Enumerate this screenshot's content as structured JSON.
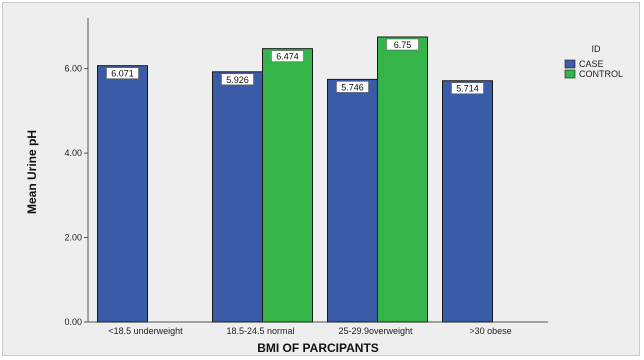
{
  "chart_data": {
    "type": "bar",
    "xlabel": "BMI OF PARCIPANTS",
    "ylabel": "Mean Urine pH",
    "ylim": [
      0,
      7.2
    ],
    "yticks": [
      "0.00",
      "2.00",
      "4.00",
      "6.00"
    ],
    "categories": [
      "<18.5 underweight",
      "18.5-24.5 normal",
      "25-29.9overweight",
      ">30 obese"
    ],
    "series": [
      {
        "name": "CASE",
        "color": "#3a5ca8",
        "values": [
          6.071,
          5.926,
          5.746,
          5.714
        ],
        "labels": [
          "6.071",
          "5.926",
          "5.746",
          "5.714"
        ]
      },
      {
        "name": "CONTROL",
        "color": "#35b44a",
        "values": [
          null,
          6.474,
          6.75,
          null
        ],
        "labels": [
          "",
          "6.474",
          "6.75",
          ""
        ]
      }
    ],
    "legend": {
      "title": "ID",
      "position": "top-right"
    },
    "grid": false
  }
}
